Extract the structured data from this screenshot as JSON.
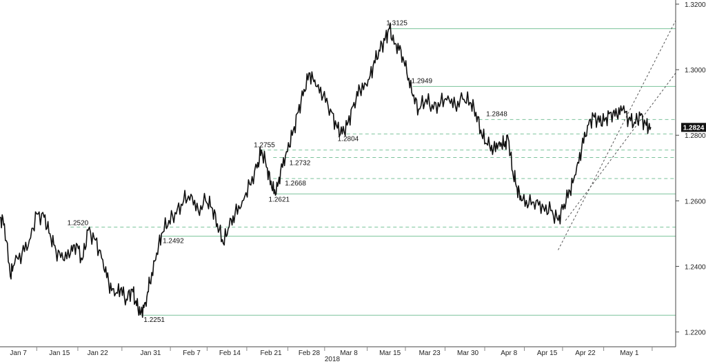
{
  "chart_data": {
    "type": "line",
    "title": "",
    "xlabel": "2018",
    "ylabel": "",
    "x_tick_labels": [
      "Jan 7",
      "Jan 15",
      "Jan 22",
      "Jan 31",
      "Feb 7",
      "Feb 14",
      "Feb 21",
      "Feb 28",
      "Mar 8",
      "Mar 15",
      "Mar 23",
      "Mar 30",
      "Apr 8",
      "Apr 15",
      "Apr 22",
      "May 1"
    ],
    "y_tick_labels": [
      "1.3200",
      "1.3000",
      "1.2800",
      "1.2600",
      "1.2400",
      "1.2200"
    ],
    "ylim": [
      1.218,
      1.32
    ],
    "y_axis_position": "right",
    "grid": false,
    "series": [
      {
        "name": "",
        "color": "#111111",
        "points": [
          [
            0,
            1.255
          ],
          [
            0.3,
            1.253
          ],
          [
            0.7,
            1.237
          ],
          [
            1.0,
            1.241
          ],
          [
            1.5,
            1.244
          ],
          [
            2.0,
            1.248
          ],
          [
            2.5,
            1.256
          ],
          [
            3.0,
            1.255
          ],
          [
            3.4,
            1.25
          ],
          [
            3.8,
            1.245
          ],
          [
            4.3,
            1.242
          ],
          [
            4.8,
            1.244
          ],
          [
            5.2,
            1.247
          ],
          [
            5.6,
            1.242
          ],
          [
            6.0,
            1.251
          ],
          [
            6.5,
            1.248
          ],
          [
            7.0,
            1.242
          ],
          [
            7.4,
            1.235
          ],
          [
            7.8,
            1.231
          ],
          [
            8.2,
            1.233
          ],
          [
            8.6,
            1.23
          ],
          [
            9.0,
            1.233
          ],
          [
            9.3,
            1.228
          ],
          [
            9.6,
            1.226
          ],
          [
            9.9,
            1.229
          ],
          [
            10.2,
            1.235
          ],
          [
            10.6,
            1.242
          ],
          [
            11.0,
            1.25
          ],
          [
            11.5,
            1.254
          ],
          [
            12.0,
            1.256
          ],
          [
            12.5,
            1.26
          ],
          [
            13.0,
            1.262
          ],
          [
            13.5,
            1.257
          ],
          [
            14.0,
            1.26
          ],
          [
            14.4,
            1.258
          ],
          [
            14.8,
            1.253
          ],
          [
            15.2,
            1.247
          ],
          [
            15.6,
            1.252
          ],
          [
            16.0,
            1.256
          ],
          [
            16.5,
            1.26
          ],
          [
            17.0,
            1.265
          ],
          [
            17.5,
            1.27
          ],
          [
            17.8,
            1.2755
          ],
          [
            18.2,
            1.27
          ],
          [
            18.5,
            1.264
          ],
          [
            18.8,
            1.2621
          ],
          [
            19.1,
            1.269
          ],
          [
            19.5,
            1.275
          ],
          [
            19.9,
            1.28
          ],
          [
            20.3,
            1.287
          ],
          [
            20.7,
            1.294
          ],
          [
            21.1,
            1.299
          ],
          [
            21.5,
            1.295
          ],
          [
            22.0,
            1.292
          ],
          [
            22.5,
            1.288
          ],
          [
            22.9,
            1.283
          ],
          [
            23.3,
            1.2804
          ],
          [
            23.7,
            1.284
          ],
          [
            24.1,
            1.29
          ],
          [
            24.5,
            1.294
          ],
          [
            25.0,
            1.295
          ],
          [
            25.4,
            1.301
          ],
          [
            25.8,
            1.306
          ],
          [
            26.2,
            1.309
          ],
          [
            26.5,
            1.3125
          ],
          [
            26.9,
            1.308
          ],
          [
            27.3,
            1.306
          ],
          [
            27.7,
            1.299
          ],
          [
            28.1,
            1.292
          ],
          [
            28.5,
            1.288
          ],
          [
            29.0,
            1.291
          ],
          [
            29.5,
            1.288
          ],
          [
            30.0,
            1.29
          ],
          [
            30.5,
            1.292
          ],
          [
            31.0,
            1.289
          ],
          [
            31.5,
            1.291
          ],
          [
            32.0,
            1.29
          ],
          [
            32.4,
            1.287
          ],
          [
            32.8,
            1.28
          ],
          [
            33.2,
            1.277
          ],
          [
            33.6,
            1.276
          ],
          [
            34.0,
            1.278
          ],
          [
            34.3,
            1.277
          ],
          [
            34.6,
            1.279
          ],
          [
            34.9,
            1.269
          ],
          [
            35.2,
            1.264
          ],
          [
            35.5,
            1.26
          ],
          [
            36.0,
            1.259
          ],
          [
            36.5,
            1.26
          ],
          [
            37.0,
            1.258
          ],
          [
            37.5,
            1.257
          ],
          [
            38.0,
            1.254
          ],
          [
            38.4,
            1.259
          ],
          [
            38.8,
            1.263
          ],
          [
            39.2,
            1.268
          ],
          [
            39.6,
            1.276
          ],
          [
            40.0,
            1.283
          ],
          [
            40.4,
            1.286
          ],
          [
            40.8,
            1.284
          ],
          [
            41.2,
            1.285
          ],
          [
            41.6,
            1.287
          ],
          [
            42.0,
            1.286
          ],
          [
            42.4,
            1.288
          ],
          [
            42.8,
            1.285
          ],
          [
            43.2,
            1.284
          ],
          [
            43.6,
            1.286
          ],
          [
            44.0,
            1.283
          ],
          [
            44.3,
            1.2824
          ]
        ]
      }
    ],
    "levels": [
      {
        "value": 1.3125,
        "style": "solid",
        "label": "1.3125"
      },
      {
        "value": 1.2949,
        "style": "solid",
        "label": "1.2949"
      },
      {
        "value": 1.2848,
        "style": "dashed",
        "label": "1.2848"
      },
      {
        "value": 1.2804,
        "style": "dashed",
        "label": "1.2804"
      },
      {
        "value": 1.2755,
        "style": "dashed",
        "label": "1.2755"
      },
      {
        "value": 1.2732,
        "style": "dashed",
        "label": "1.2732"
      },
      {
        "value": 1.2668,
        "style": "dashed",
        "label": "1.2668"
      },
      {
        "value": 1.2621,
        "style": "solid",
        "label": "1.2621"
      },
      {
        "value": 1.252,
        "style": "dashed",
        "label": "1.2520"
      },
      {
        "value": 1.2492,
        "style": "solid",
        "label": "1.2492"
      },
      {
        "value": 1.2251,
        "style": "solid",
        "label": "1.2251"
      }
    ],
    "trend_channel": [
      {
        "from": [
          38.0,
          1.245
        ],
        "to": [
          46.0,
          1.315
        ]
      },
      {
        "from": [
          38.5,
          1.254
        ],
        "to": [
          46.0,
          1.299
        ]
      }
    ],
    "last_value": "1.2824",
    "colors": {
      "line": "#111111",
      "level": "#7ac29a",
      "trend": "#555555",
      "last_marker": "#111111"
    }
  }
}
